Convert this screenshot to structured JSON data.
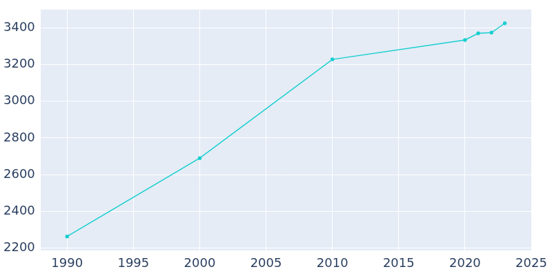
{
  "chart_data": {
    "type": "line",
    "x": [
      1990,
      2000,
      2010,
      2020,
      2021,
      2022,
      2023
    ],
    "values": [
      2263,
      2690,
      3228,
      3334,
      3370,
      3374,
      3425
    ],
    "color": "#17cfcf",
    "marker": "circle",
    "xlim": [
      1988,
      2025
    ],
    "xticks": [
      1990,
      1995,
      2000,
      2005,
      2010,
      2015,
      2020,
      2025
    ],
    "ylim": [
      2185,
      3500
    ],
    "yticks": [
      2200,
      2400,
      2600,
      2800,
      3000,
      3200,
      3400
    ],
    "grid": true
  }
}
